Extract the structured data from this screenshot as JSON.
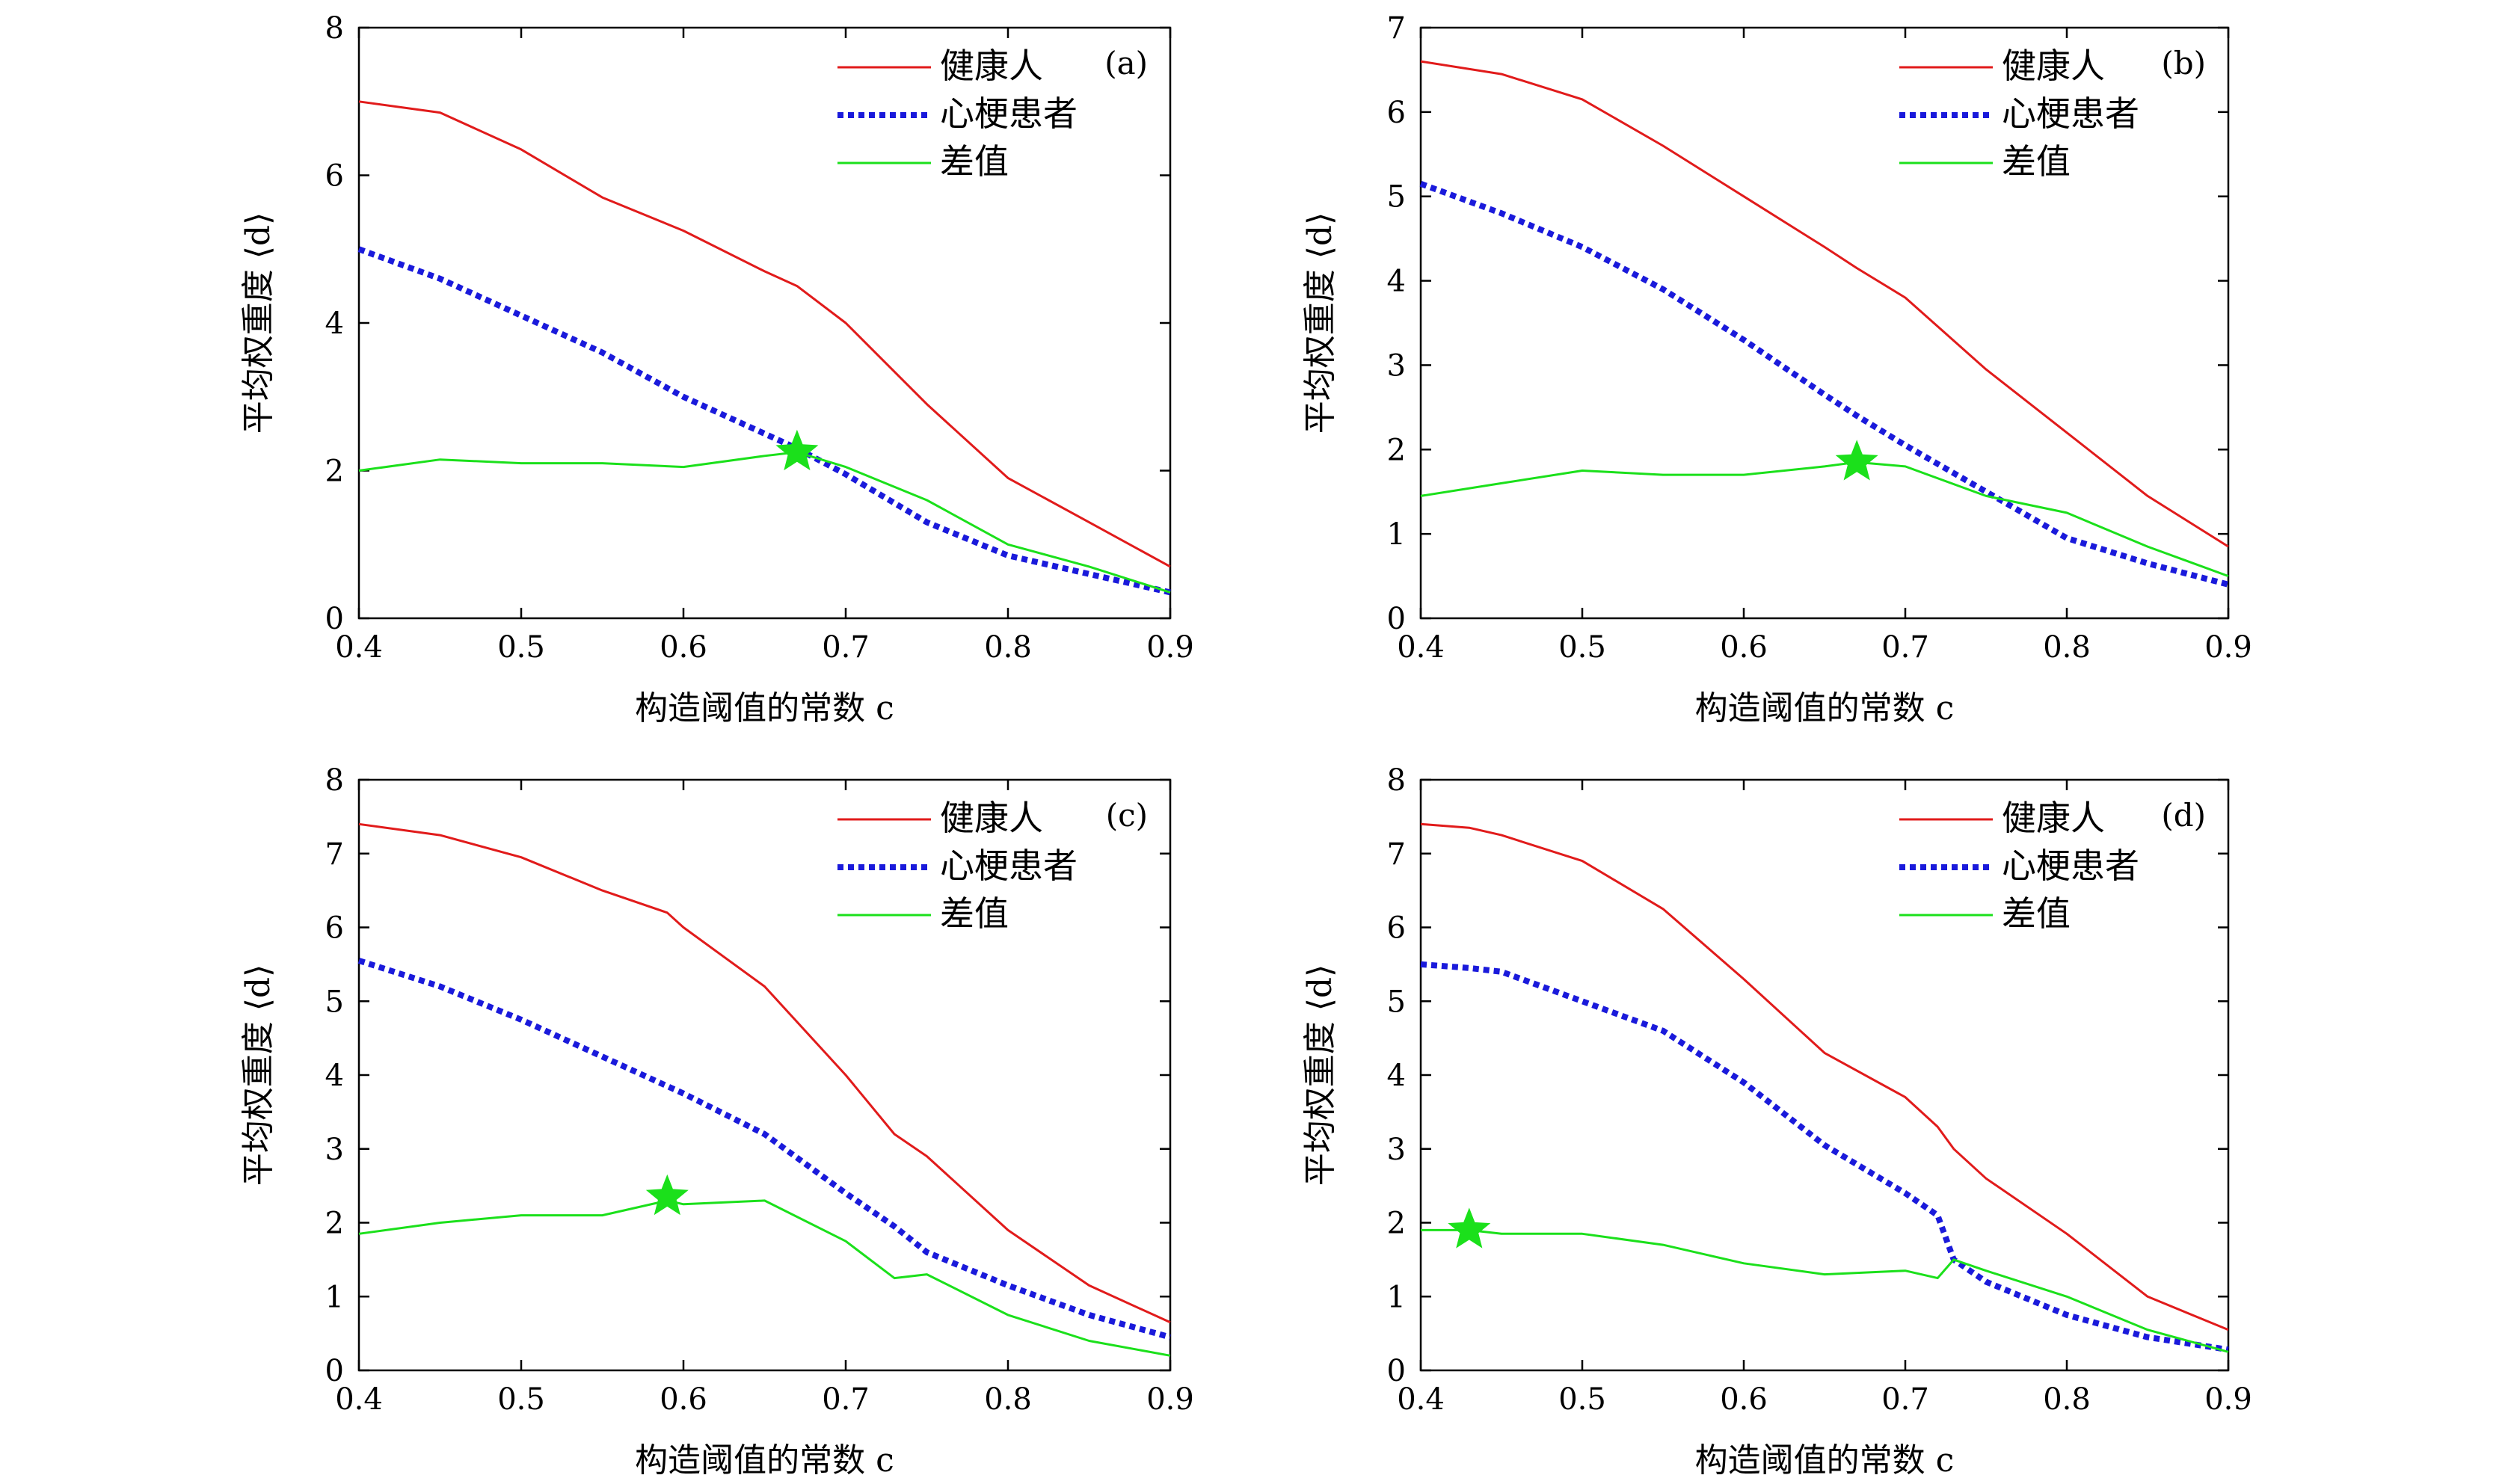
{
  "figure": {
    "series_names": [
      "健康人",
      "心梗患者",
      "差值"
    ],
    "colors": {
      "healthy": "#e11b1b",
      "patient": "#1a1adb",
      "diff": "#1be01b",
      "star": "#1be01b"
    }
  },
  "chart_data": [
    {
      "type": "line",
      "panel": "(a)",
      "xlabel": "构造阈值的常数 c",
      "ylabel": "平均权重度 ⟨d⟩",
      "xlim": [
        0.4,
        0.9
      ],
      "ylim": [
        0,
        8
      ],
      "xticks": [
        "0.4",
        "0.5",
        "0.6",
        "0.7",
        "0.8",
        "0.9"
      ],
      "yticks": [
        "0",
        "2",
        "4",
        "6",
        "8"
      ],
      "x": [
        0.4,
        0.45,
        0.5,
        0.55,
        0.6,
        0.65,
        0.67,
        0.7,
        0.75,
        0.8,
        0.85,
        0.9
      ],
      "series": [
        {
          "name": "健康人",
          "values": [
            7.0,
            6.85,
            6.35,
            5.7,
            5.25,
            4.7,
            4.5,
            4.0,
            2.9,
            1.9,
            1.3,
            0.7
          ]
        },
        {
          "name": "心梗患者",
          "values": [
            5.0,
            4.6,
            4.1,
            3.6,
            3.0,
            2.5,
            2.3,
            1.95,
            1.3,
            0.85,
            0.6,
            0.35
          ]
        },
        {
          "name": "差值",
          "values": [
            2.0,
            2.15,
            2.1,
            2.1,
            2.05,
            2.2,
            2.25,
            2.05,
            1.6,
            1.0,
            0.7,
            0.35
          ]
        }
      ],
      "star": {
        "x": 0.67,
        "y": 2.25
      }
    },
    {
      "type": "line",
      "panel": "(b)",
      "xlabel": "构造阈值的常数 c",
      "ylabel": "平均权重度 ⟨d⟩",
      "xlim": [
        0.4,
        0.9
      ],
      "ylim": [
        0,
        7
      ],
      "xticks": [
        "0.4",
        "0.5",
        "0.6",
        "0.7",
        "0.8",
        "0.9"
      ],
      "yticks": [
        "0",
        "1",
        "2",
        "3",
        "4",
        "5",
        "6",
        "7"
      ],
      "x": [
        0.4,
        0.45,
        0.5,
        0.55,
        0.6,
        0.65,
        0.67,
        0.7,
        0.75,
        0.8,
        0.85,
        0.9
      ],
      "series": [
        {
          "name": "健康人",
          "values": [
            6.6,
            6.45,
            6.15,
            5.6,
            5.0,
            4.4,
            4.15,
            3.8,
            2.95,
            2.2,
            1.45,
            0.85
          ]
        },
        {
          "name": "心梗患者",
          "values": [
            5.15,
            4.8,
            4.4,
            3.9,
            3.3,
            2.65,
            2.4,
            2.05,
            1.5,
            0.95,
            0.65,
            0.4
          ]
        },
        {
          "name": "差值",
          "values": [
            1.45,
            1.6,
            1.75,
            1.7,
            1.7,
            1.8,
            1.85,
            1.8,
            1.45,
            1.25,
            0.85,
            0.5
          ]
        }
      ],
      "star": {
        "x": 0.67,
        "y": 1.85
      }
    },
    {
      "type": "line",
      "panel": "(c)",
      "xlabel": "构造阈值的常数 c",
      "ylabel": "平均权重度 ⟨d⟩",
      "xlim": [
        0.4,
        0.9
      ],
      "ylim": [
        0,
        8
      ],
      "xticks": [
        "0.4",
        "0.5",
        "0.6",
        "0.7",
        "0.8",
        "0.9"
      ],
      "yticks": [
        "0",
        "1",
        "2",
        "3",
        "4",
        "5",
        "6",
        "7",
        "8"
      ],
      "x": [
        0.4,
        0.45,
        0.5,
        0.55,
        0.59,
        0.6,
        0.65,
        0.7,
        0.73,
        0.75,
        0.8,
        0.85,
        0.9
      ],
      "series": [
        {
          "name": "健康人",
          "values": [
            7.4,
            7.25,
            6.95,
            6.5,
            6.2,
            6.0,
            5.2,
            4.0,
            3.2,
            2.9,
            1.9,
            1.15,
            0.65
          ]
        },
        {
          "name": "心梗患者",
          "values": [
            5.55,
            5.2,
            4.75,
            4.25,
            3.85,
            3.75,
            3.2,
            2.4,
            1.95,
            1.6,
            1.15,
            0.75,
            0.45
          ]
        },
        {
          "name": "差值",
          "values": [
            1.85,
            2.0,
            2.1,
            2.1,
            2.3,
            2.25,
            2.3,
            1.75,
            1.25,
            1.3,
            0.75,
            0.4,
            0.2
          ]
        }
      ],
      "star": {
        "x": 0.59,
        "y": 2.35
      }
    },
    {
      "type": "line",
      "panel": "(d)",
      "xlabel": "构造阈值的常数 c",
      "ylabel": "平均权重度 ⟨d⟩",
      "xlim": [
        0.4,
        0.9
      ],
      "ylim": [
        0,
        8
      ],
      "xticks": [
        "0.4",
        "0.5",
        "0.6",
        "0.7",
        "0.8",
        "0.9"
      ],
      "yticks": [
        "0",
        "1",
        "2",
        "3",
        "4",
        "5",
        "6",
        "7",
        "8"
      ],
      "x": [
        0.4,
        0.43,
        0.45,
        0.5,
        0.55,
        0.6,
        0.65,
        0.7,
        0.72,
        0.73,
        0.75,
        0.8,
        0.85,
        0.9
      ],
      "series": [
        {
          "name": "健康人",
          "values": [
            7.4,
            7.35,
            7.25,
            6.9,
            6.25,
            5.3,
            4.3,
            3.7,
            3.3,
            3.0,
            2.6,
            1.85,
            1.0,
            0.55
          ]
        },
        {
          "name": "心梗患者",
          "values": [
            5.5,
            5.45,
            5.4,
            5.0,
            4.6,
            3.9,
            3.05,
            2.4,
            2.1,
            1.5,
            1.2,
            0.75,
            0.45,
            0.28
          ]
        },
        {
          "name": "差值",
          "values": [
            1.9,
            1.9,
            1.85,
            1.85,
            1.7,
            1.45,
            1.3,
            1.35,
            1.25,
            1.5,
            1.35,
            1.0,
            0.55,
            0.25
          ]
        }
      ],
      "star": {
        "x": 0.43,
        "y": 1.9
      }
    }
  ]
}
